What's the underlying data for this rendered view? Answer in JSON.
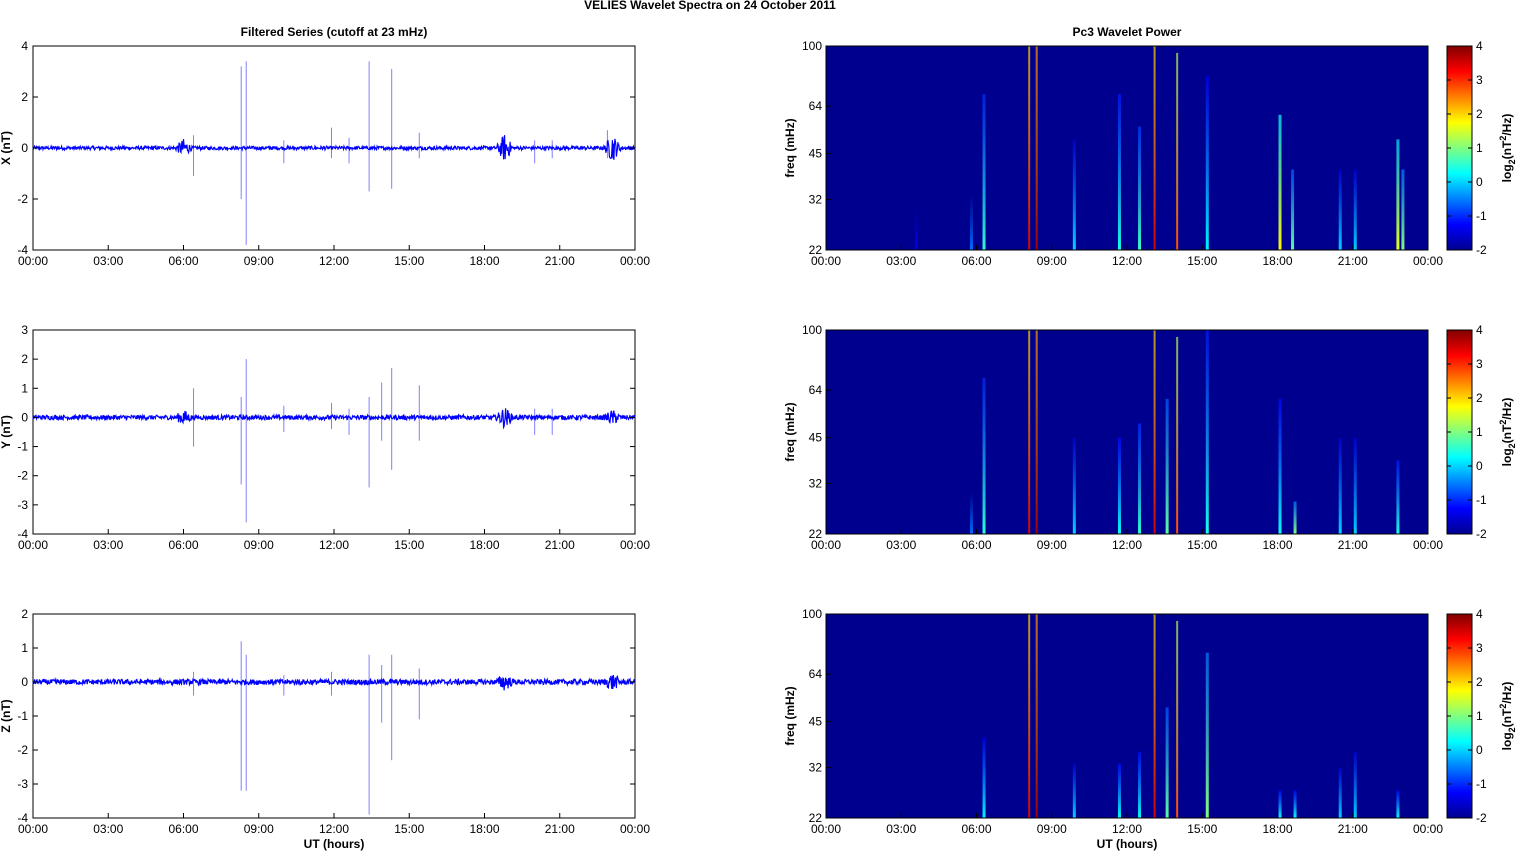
{
  "figure": {
    "suptitle": "VELIES Wavelet Spectra on 24 October   2011",
    "left_title": "Filtered Series (cutoff at 23 mHz)",
    "right_title": "Pc3 Wavelet Power"
  },
  "colors": {
    "series": "#0000ff",
    "spike": "#8080ff",
    "background_power": "#00008f"
  },
  "chart_data": [
    {
      "type": "line",
      "id": "x",
      "ylabel": "X (nT)",
      "ylim": [
        -4,
        4
      ],
      "yticks": [
        -4,
        -2,
        0,
        2,
        4
      ],
      "xlabel": "",
      "x_tick_labels": [
        "00:00",
        "03:00",
        "06:00",
        "09:00",
        "12:00",
        "15:00",
        "18:00",
        "21:00",
        "00:00"
      ],
      "xlim_hours": [
        0,
        24
      ],
      "noise_amplitude": 0.07,
      "bursts": [
        [
          6.0,
          0.3
        ],
        [
          18.8,
          0.5
        ],
        [
          23.1,
          0.5
        ]
      ],
      "spikes": [
        [
          6.4,
          0.5,
          -1.1
        ],
        [
          8.3,
          3.2,
          -2.0
        ],
        [
          8.5,
          3.4,
          -3.8
        ],
        [
          10.0,
          0.3,
          -0.6
        ],
        [
          11.9,
          0.8,
          -0.4
        ],
        [
          12.6,
          0.4,
          -0.6
        ],
        [
          13.4,
          3.4,
          -1.7
        ],
        [
          14.3,
          3.1,
          -1.6
        ],
        [
          15.4,
          0.6,
          -0.4
        ],
        [
          20.0,
          0.3,
          -0.6
        ],
        [
          20.7,
          0.3,
          -0.4
        ],
        [
          22.9,
          0.7,
          -0.4
        ]
      ]
    },
    {
      "type": "line",
      "id": "y",
      "ylabel": "Y (nT)",
      "ylim": [
        -4,
        3
      ],
      "yticks": [
        -4,
        -3,
        -2,
        -1,
        0,
        1,
        2,
        3
      ],
      "xlabel": "",
      "x_tick_labels": [
        "00:00",
        "03:00",
        "06:00",
        "09:00",
        "12:00",
        "15:00",
        "18:00",
        "21:00",
        "00:00"
      ],
      "xlim_hours": [
        0,
        24
      ],
      "noise_amplitude": 0.08,
      "bursts": [
        [
          6.0,
          0.2
        ],
        [
          18.8,
          0.3
        ],
        [
          23.1,
          0.2
        ]
      ],
      "spikes": [
        [
          6.4,
          1.0,
          -1.0
        ],
        [
          8.3,
          0.7,
          -2.3
        ],
        [
          8.5,
          2.0,
          -3.6
        ],
        [
          10.0,
          0.4,
          -0.5
        ],
        [
          11.9,
          0.5,
          -0.4
        ],
        [
          12.6,
          0.3,
          -0.6
        ],
        [
          13.4,
          0.7,
          -2.4
        ],
        [
          13.9,
          1.2,
          -0.8
        ],
        [
          14.3,
          1.7,
          -1.8
        ],
        [
          15.4,
          1.1,
          -0.8
        ],
        [
          20.0,
          0.3,
          -0.6
        ],
        [
          20.7,
          0.3,
          -0.6
        ]
      ]
    },
    {
      "type": "line",
      "id": "z",
      "ylabel": "Z (nT)",
      "ylim": [
        -4,
        2
      ],
      "yticks": [
        -4,
        -3,
        -2,
        -1,
        0,
        1,
        2
      ],
      "xlabel": "UT (hours)",
      "x_tick_labels": [
        "00:00",
        "03:00",
        "06:00",
        "09:00",
        "12:00",
        "15:00",
        "18:00",
        "21:00",
        "00:00"
      ],
      "xlim_hours": [
        0,
        24
      ],
      "noise_amplitude": 0.08,
      "bursts": [
        [
          18.8,
          0.2
        ],
        [
          23.1,
          0.2
        ]
      ],
      "spikes": [
        [
          6.4,
          0.3,
          -0.4
        ],
        [
          8.3,
          1.2,
          -3.2
        ],
        [
          8.5,
          0.8,
          -3.2
        ],
        [
          10.0,
          0.2,
          -0.4
        ],
        [
          11.9,
          0.3,
          -0.4
        ],
        [
          13.4,
          0.8,
          -3.9
        ],
        [
          13.9,
          0.5,
          -1.2
        ],
        [
          14.3,
          0.8,
          -2.3
        ],
        [
          15.4,
          0.4,
          -1.1
        ]
      ]
    },
    {
      "type": "heatmap",
      "id": "px",
      "ylabel": "freq (mHz)",
      "xlabel": "",
      "y_tick_labels": [
        "22",
        "32",
        "45",
        "64",
        "100"
      ],
      "freq_range_mHz": [
        22,
        100
      ],
      "x_tick_labels": [
        "00:00",
        "03:00",
        "06:00",
        "09:00",
        "12:00",
        "15:00",
        "18:00",
        "21:00",
        "00:00"
      ],
      "xlim_hours": [
        0,
        24
      ],
      "colorbar_label": "log2(nT2/Hz)",
      "colorbar_ticks": [
        -2,
        -1,
        0,
        1,
        2,
        3,
        4
      ],
      "clim": [
        -2,
        4
      ],
      "features": [
        [
          3.6,
          30,
          -1.4
        ],
        [
          5.8,
          33,
          -0.6
        ],
        [
          6.3,
          70,
          0.5
        ],
        [
          8.1,
          100,
          3.5
        ],
        [
          8.4,
          100,
          3.8
        ],
        [
          9.9,
          50,
          0.0
        ],
        [
          11.7,
          70,
          0.4
        ],
        [
          12.5,
          55,
          0.6
        ],
        [
          13.1,
          100,
          3.5
        ],
        [
          14.0,
          95,
          2.8
        ],
        [
          15.2,
          80,
          0.2
        ],
        [
          18.1,
          60,
          1.8
        ],
        [
          18.6,
          40,
          0.8
        ],
        [
          20.5,
          40,
          0.0
        ],
        [
          21.1,
          40,
          0.0
        ],
        [
          22.8,
          50,
          1.6
        ],
        [
          23.0,
          40,
          1.0
        ]
      ]
    },
    {
      "type": "heatmap",
      "id": "py",
      "ylabel": "freq (mHz)",
      "xlabel": "",
      "y_tick_labels": [
        "22",
        "32",
        "45",
        "64",
        "100"
      ],
      "freq_range_mHz": [
        22,
        100
      ],
      "x_tick_labels": [
        "00:00",
        "03:00",
        "06:00",
        "09:00",
        "12:00",
        "15:00",
        "18:00",
        "21:00",
        "00:00"
      ],
      "xlim_hours": [
        0,
        24
      ],
      "colorbar_label": "log2(nT2/Hz)",
      "colorbar_ticks": [
        -2,
        -1,
        0,
        1,
        2,
        3,
        4
      ],
      "clim": [
        -2,
        4
      ],
      "features": [
        [
          5.8,
          30,
          -0.6
        ],
        [
          6.3,
          70,
          0.5
        ],
        [
          8.1,
          100,
          3.5
        ],
        [
          8.4,
          100,
          3.8
        ],
        [
          9.9,
          45,
          0.0
        ],
        [
          11.7,
          45,
          0.3
        ],
        [
          12.5,
          50,
          0.5
        ],
        [
          13.1,
          100,
          3.5
        ],
        [
          13.6,
          60,
          0.8
        ],
        [
          14.0,
          95,
          2.8
        ],
        [
          15.2,
          100,
          0.4
        ],
        [
          18.1,
          60,
          0.3
        ],
        [
          18.7,
          28,
          1.0
        ],
        [
          20.5,
          45,
          0.0
        ],
        [
          21.1,
          45,
          0.0
        ],
        [
          22.8,
          38,
          0.4
        ]
      ]
    },
    {
      "type": "heatmap",
      "id": "pz",
      "ylabel": "freq (mHz)",
      "xlabel": "UT (hours)",
      "y_tick_labels": [
        "22",
        "32",
        "45",
        "64",
        "100"
      ],
      "freq_range_mHz": [
        22,
        100
      ],
      "x_tick_labels": [
        "00:00",
        "03:00",
        "06:00",
        "09:00",
        "12:00",
        "15:00",
        "18:00",
        "21:00",
        "00:00"
      ],
      "xlim_hours": [
        0,
        24
      ],
      "colorbar_label": "log2(nT2/Hz)",
      "colorbar_ticks": [
        -2,
        -1,
        0,
        1,
        2,
        3,
        4
      ],
      "clim": [
        -2,
        4
      ],
      "features": [
        [
          6.3,
          40,
          0.2
        ],
        [
          8.1,
          100,
          3.5
        ],
        [
          8.4,
          100,
          3.8
        ],
        [
          9.9,
          33,
          0.0
        ],
        [
          11.7,
          33,
          0.3
        ],
        [
          12.5,
          36,
          0.3
        ],
        [
          13.1,
          100,
          3.5
        ],
        [
          13.6,
          50,
          0.8
        ],
        [
          14.0,
          95,
          2.8
        ],
        [
          15.2,
          75,
          1.0
        ],
        [
          18.1,
          27,
          0.3
        ],
        [
          18.7,
          27,
          0.3
        ],
        [
          20.5,
          32,
          0.0
        ],
        [
          21.1,
          36,
          0.0
        ],
        [
          22.8,
          27,
          0.3
        ]
      ]
    }
  ]
}
